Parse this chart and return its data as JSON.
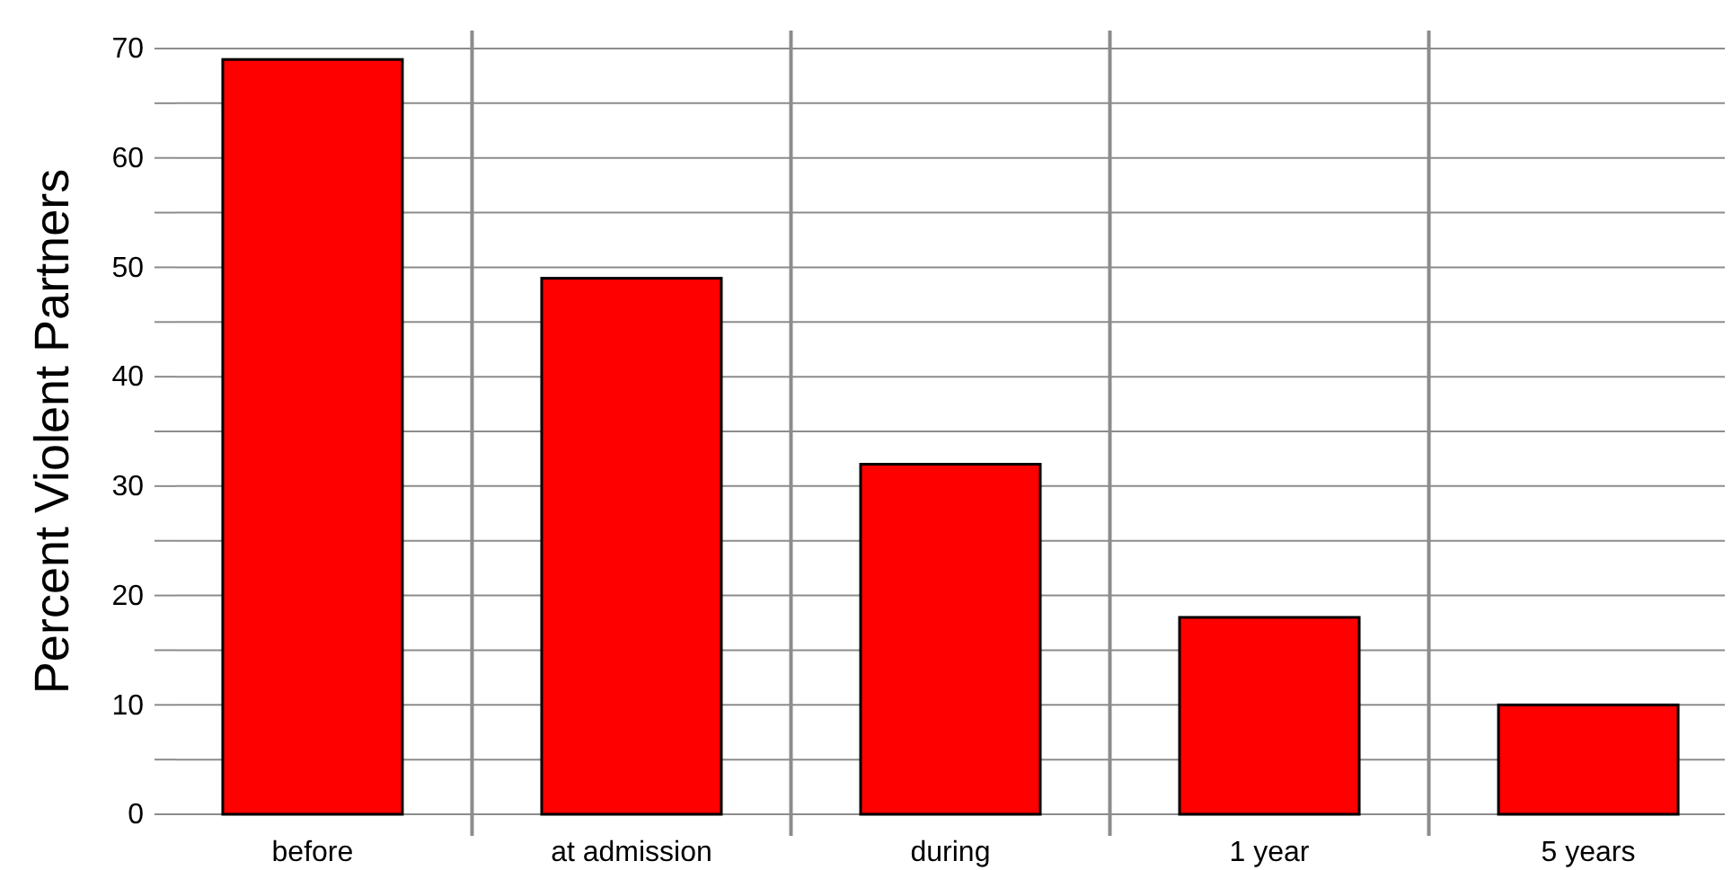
{
  "chart_data": {
    "type": "bar",
    "ylabel": "Percent Violent Partners",
    "categories": [
      "before",
      "at admission",
      "during",
      "1 year",
      "5 years"
    ],
    "values": [
      69,
      49,
      32,
      18,
      10
    ],
    "color": "#ff0000",
    "ylim": [
      0,
      70
    ],
    "yticks": [
      0,
      {
        "value": 5,
        "label": null
      },
      10,
      {
        "value": 15,
        "label": null
      },
      20,
      {
        "value": 25,
        "label": null
      },
      30,
      {
        "value": 35,
        "label": null
      },
      40,
      {
        "value": 45,
        "label": null
      },
      50,
      {
        "value": 55,
        "label": null
      },
      60,
      {
        "value": 65,
        "label": null
      },
      70
    ],
    "grid": true
  }
}
